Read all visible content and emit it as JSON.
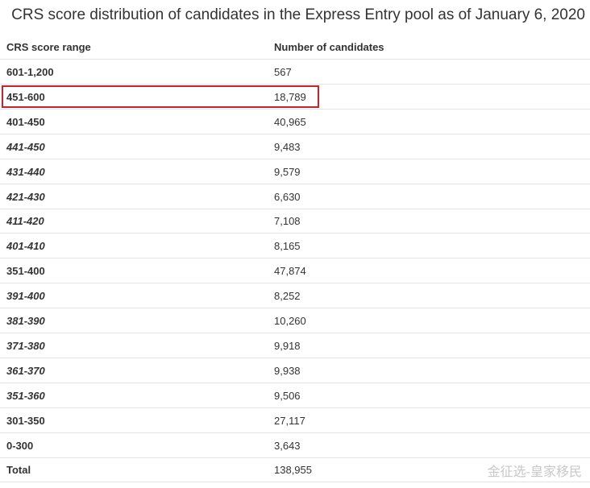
{
  "title": "CRS score distribution of candidates in the Express Entry pool as of January 6, 2020",
  "table": {
    "header": [
      "CRS score range",
      "Number of candidates"
    ],
    "rows": [
      {
        "cells": [
          "601-1,200",
          "567"
        ],
        "italic": false
      },
      {
        "cells": [
          "451-600",
          "18,789"
        ],
        "italic": false,
        "highlighted": true
      },
      {
        "cells": [
          "401-450",
          "40,965"
        ],
        "italic": false
      },
      {
        "cells": [
          "441-450",
          "9,483"
        ],
        "italic": true
      },
      {
        "cells": [
          "431-440",
          "9,579"
        ],
        "italic": true
      },
      {
        "cells": [
          "421-430",
          "6,630"
        ],
        "italic": true
      },
      {
        "cells": [
          "411-420",
          "7,108"
        ],
        "italic": true
      },
      {
        "cells": [
          "401-410",
          "8,165"
        ],
        "italic": true
      },
      {
        "cells": [
          "351-400",
          "47,874"
        ],
        "italic": false
      },
      {
        "cells": [
          "391-400",
          "8,252"
        ],
        "italic": true
      },
      {
        "cells": [
          "381-390",
          "10,260"
        ],
        "italic": true
      },
      {
        "cells": [
          "371-380",
          "9,918"
        ],
        "italic": true
      },
      {
        "cells": [
          "361-370",
          "9,938"
        ],
        "italic": true
      },
      {
        "cells": [
          "351-360",
          "9,506"
        ],
        "italic": true
      },
      {
        "cells": [
          "301-350",
          "27,117"
        ],
        "italic": false
      },
      {
        "cells": [
          "0-300",
          "3,643"
        ],
        "italic": false
      },
      {
        "cells": [
          "Total",
          "138,955"
        ],
        "italic": false
      }
    ]
  },
  "watermark": "金征选-皇家移民"
}
